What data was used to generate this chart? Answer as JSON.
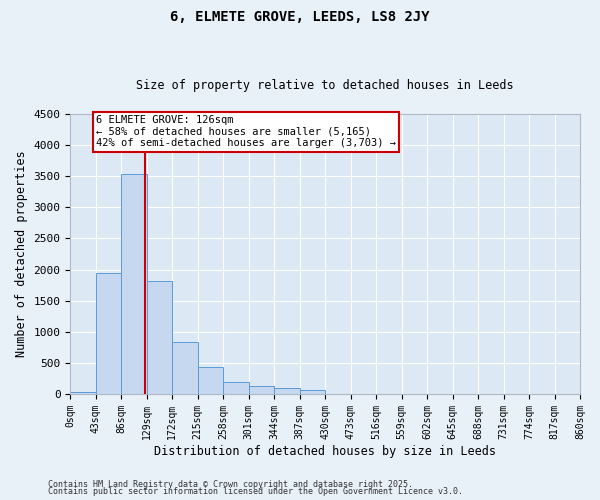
{
  "title1": "6, ELMETE GROVE, LEEDS, LS8 2JY",
  "title2": "Size of property relative to detached houses in Leeds",
  "xlabel": "Distribution of detached houses by size in Leeds",
  "ylabel": "Number of detached properties",
  "bin_labels": [
    "0sqm",
    "43sqm",
    "86sqm",
    "129sqm",
    "172sqm",
    "215sqm",
    "258sqm",
    "301sqm",
    "344sqm",
    "387sqm",
    "430sqm",
    "473sqm",
    "516sqm",
    "559sqm",
    "602sqm",
    "645sqm",
    "688sqm",
    "731sqm",
    "774sqm",
    "817sqm",
    "860sqm"
  ],
  "bin_edges": [
    0,
    43,
    86,
    129,
    172,
    215,
    258,
    301,
    344,
    387,
    430,
    473,
    516,
    559,
    602,
    645,
    688,
    731,
    774,
    817,
    860
  ],
  "bar_heights": [
    30,
    1950,
    3530,
    1820,
    840,
    430,
    190,
    130,
    90,
    70,
    0,
    0,
    0,
    0,
    0,
    0,
    0,
    0,
    0,
    0
  ],
  "bar_color": "#c5d8f0",
  "bar_edge_color": "#5b9bd5",
  "property_size": 126,
  "annotation_line1": "6 ELMETE GROVE: 126sqm",
  "annotation_line2": "← 58% of detached houses are smaller (5,165)",
  "annotation_line3": "42% of semi-detached houses are larger (3,703) →",
  "vline_color": "#cc0000",
  "annotation_box_facecolor": "#ffffff",
  "annotation_box_edgecolor": "#cc0000",
  "ylim": [
    0,
    4500
  ],
  "yticks": [
    0,
    500,
    1000,
    1500,
    2000,
    2500,
    3000,
    3500,
    4000,
    4500
  ],
  "plot_bg": "#dce9f5",
  "fig_bg": "#e8f0f8",
  "grid_color": "#ffffff",
  "footer1": "Contains HM Land Registry data © Crown copyright and database right 2025.",
  "footer2": "Contains public sector information licensed under the Open Government Licence v3.0."
}
